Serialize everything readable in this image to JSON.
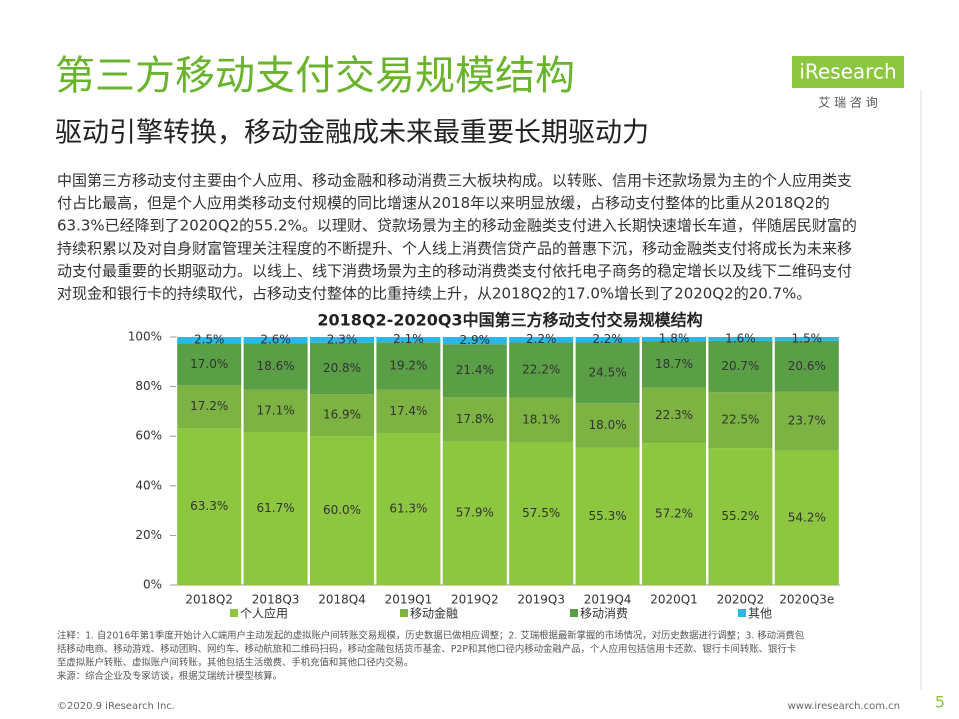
{
  "header": {
    "title": "第三方移动支付交易规模结构",
    "subtitle": "驱动引擎转换，移动金融成未来最重要长期驱动力"
  },
  "logo": {
    "name": "iResearch",
    "sub": "艾 瑞 咨 询"
  },
  "body": {
    "lines": [
      "中国第三方移动支付主要由个人应用、移动金融和移动消费三大板块构成。以转账、信用卡还款场景为主的个人应用类支",
      "付占比最高，但是个人应用类移动支付规模的同比增速从2018年以来明显放缓，占移动支付整体的比重从2018Q2的",
      "63.3%已经降到了2020Q2的55.2%。以理财、贷款场景为主的移动金融类支付进入长期快速增长车道，伴随居民财富的",
      "持续积累以及对自身财富管理关注程度的不断提升、个人线上消费信贷产品的普惠下沉，移动金融类支付将成长为未来移",
      "动支付最重要的长期驱动力。以线上、线下消费场景为主的移动消费类支付依托电子商务的稳定增长以及线下二维码支付",
      "对现金和银行卡的持续取代，占移动支付整体的比重持续上升，从2018Q2的17.0%增长到了2020Q2的20.7%。"
    ]
  },
  "chart_data": {
    "type": "stacked_bar",
    "title": "2018Q2-2020Q3中国第三方移动支付交易规模结构",
    "categories": [
      "2018Q2",
      "2018Q3",
      "2018Q4",
      "2019Q1",
      "2019Q2",
      "2019Q3",
      "2019Q4",
      "2020Q1",
      "2020Q2",
      "2020Q3e"
    ],
    "series": [
      {
        "name": "个人应用",
        "color": "#8dc63f",
        "values": [
          63.3,
          61.7,
          60.0,
          61.3,
          57.9,
          57.5,
          55.3,
          57.2,
          55.2,
          54.2
        ],
        "value_labels": [
          "63.3%",
          "61.7%",
          "60.0%",
          "61.3%",
          "57.9%",
          "57.5%",
          "55.3%",
          "57.2%",
          "55.2%",
          "54.2%"
        ]
      },
      {
        "name": "移动金融",
        "color": "#7cb342",
        "values": [
          17.2,
          17.1,
          16.9,
          17.4,
          17.8,
          18.1,
          18.0,
          22.3,
          22.5,
          23.7
        ],
        "value_labels": [
          "17.2%",
          "17.1%",
          "16.9%",
          "17.4%",
          "17.8%",
          "18.1%",
          "18.0%",
          "22.3%",
          "22.5%",
          "23.7%"
        ]
      },
      {
        "name": "移动消费",
        "color": "#5a9e46",
        "values": [
          17.0,
          18.6,
          20.8,
          19.2,
          21.4,
          22.2,
          24.5,
          18.7,
          20.7,
          20.6
        ],
        "value_labels": [
          "17.0%",
          "18.6%",
          "20.8%",
          "19.2%",
          "21.4%",
          "22.2%",
          "24.5%",
          "18.7%",
          "20.7%",
          "20.6%"
        ]
      },
      {
        "name": "其他",
        "color": "#29b6e8",
        "values": [
          2.5,
          2.6,
          2.3,
          2.1,
          2.9,
          2.2,
          2.2,
          1.8,
          1.6,
          1.5
        ],
        "value_labels": [
          "2.5%",
          "2.6%",
          "2.3%",
          "2.1%",
          "2.9%",
          "2.2%",
          "2.2%",
          "1.8%",
          "1.6%",
          "1.5%"
        ]
      }
    ],
    "ylim": [
      0,
      100
    ],
    "yticks": [
      {
        "value": 0,
        "label": "0%"
      },
      {
        "value": 20,
        "label": "20%"
      },
      {
        "value": 40,
        "label": "40%"
      },
      {
        "value": 60,
        "label": "60%"
      },
      {
        "value": 80,
        "label": "80%"
      },
      {
        "value": 100,
        "label": "100%"
      }
    ],
    "grid": false
  },
  "notes": [
    "注释：1. 自2016年第1季度开始计入C端用户主动发起的虚拟账户间转账交易规模，历史数据已做相应调整；2. 艾瑞根据最新掌握的市场情况，对历史数据进行调整；3. 移动消费包",
    "括移动电商、移动游戏、移动团购、网约车、移动航旅和二维码扫码，移动金融包括货币基金、P2P和其他口径内移动金融产品，个人应用包括信用卡还款、银行卡间转账、银行卡",
    "至虚拟账户转账、虚拟账户间转账，其他包括生活缴费、手机充值和其他口径内交易。",
    "来源：综合企业及专家访谈，根据艾瑞统计模型核算。"
  ],
  "footer": {
    "copyright": "©2020.9 iResearch Inc.",
    "url": "www.iresearch.com.cn",
    "page": 5
  }
}
